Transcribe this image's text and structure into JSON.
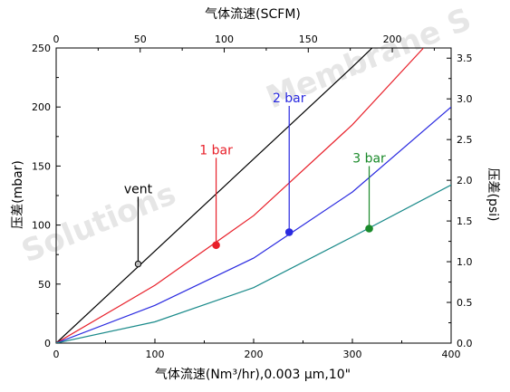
{
  "chart_data": {
    "type": "line",
    "title": "",
    "xlabel": "气体流速(Nm³/hr),0.003 μm,10\"",
    "x2label": "气体流速(SCFM)",
    "ylabel": "压差(mbar)",
    "y2label": "压差(psi)",
    "xlim": [
      0,
      400
    ],
    "ylim": [
      0,
      250
    ],
    "x2lim": [
      0,
      235
    ],
    "y2lim": [
      0,
      3.625
    ],
    "x_ticks": [
      "0",
      "100",
      "200",
      "300",
      "400"
    ],
    "y_ticks": [
      "0",
      "50",
      "100",
      "150",
      "200",
      "250"
    ],
    "x2_ticks": [
      "0",
      "50",
      "100",
      "150",
      "200"
    ],
    "y2_ticks": [
      "0.0",
      "0.5",
      "1.0",
      "1.5",
      "2.0",
      "2.5",
      "3.0",
      "3.5"
    ],
    "grid": false,
    "series": [
      {
        "name": "vent",
        "color": "#000000",
        "x": [
          0,
          100,
          200,
          300,
          320
        ],
        "y": [
          0,
          78,
          156,
          234,
          250
        ]
      },
      {
        "name": "1 bar",
        "color": "#e8202a",
        "x": [
          0,
          100,
          200,
          300,
          372
        ],
        "y": [
          0,
          49,
          108,
          185,
          250
        ]
      },
      {
        "name": "2 bar",
        "color": "#2a2ae0",
        "x": [
          0,
          100,
          200,
          300,
          400
        ],
        "y": [
          0,
          32,
          72,
          128,
          200
        ]
      },
      {
        "name": "3 bar",
        "color": "#1a8a8a",
        "x": [
          0,
          100,
          200,
          300,
          400
        ],
        "y": [
          0,
          18,
          47,
          90,
          134
        ]
      }
    ],
    "annotations": [
      {
        "label": "vent",
        "color": "#000000",
        "point": [
          83,
          67
        ],
        "label_pos": [
          83,
          127
        ],
        "marker": "open-circle"
      },
      {
        "label": "1 bar",
        "color": "#e8202a",
        "point": [
          162,
          83
        ],
        "label_pos": [
          162,
          160
        ],
        "marker": "filled-circle"
      },
      {
        "label": "2 bar",
        "color": "#2a2ae0",
        "point": [
          236,
          94
        ],
        "label_pos": [
          236,
          204
        ],
        "marker": "filled-circle"
      },
      {
        "label": "3 bar",
        "color": "#1a8a2a",
        "point": [
          317,
          97
        ],
        "label_pos": [
          317,
          153
        ],
        "marker": "filled-circle"
      }
    ],
    "watermarks": [
      "Solutions",
      "Membrane S"
    ]
  }
}
